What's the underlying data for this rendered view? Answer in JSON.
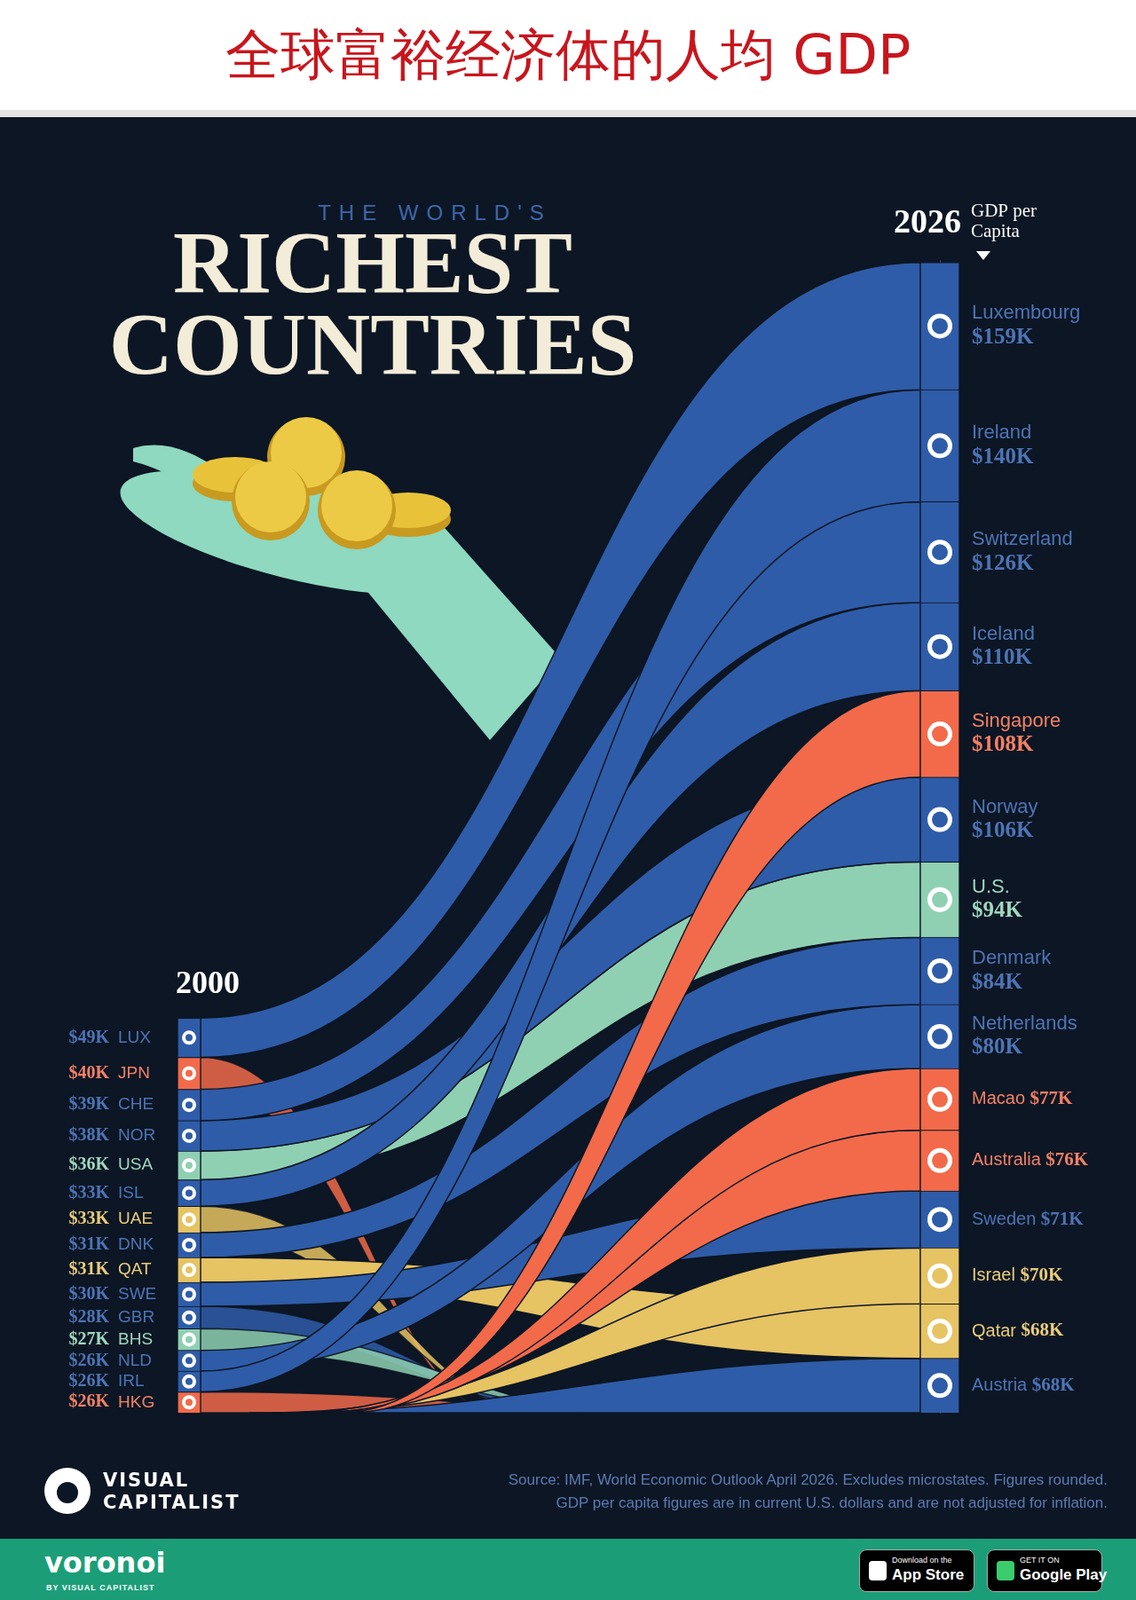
{
  "header": {
    "title": "全球富裕经济体的人均 GDP"
  },
  "chart_data": {
    "type": "bar",
    "stacked": true,
    "data_labels": true,
    "tick_labels": false,
    "grid": false,
    "supertitle": "THE WORLD'S",
    "title": "RICHEST COUNTRIES",
    "ylabel": "GDP per Capita",
    "categories": [
      "2000",
      "2026"
    ],
    "ylim": [
      0,
      1440
    ],
    "order_2000": [
      "LUX",
      "JPN",
      "CHE",
      "NOR",
      "USA",
      "ISL",
      "UAE",
      "DNK",
      "QAT",
      "SWE",
      "GBR",
      "BHS",
      "NLD",
      "IRL",
      "HKG"
    ],
    "order_2026": [
      "Luxembourg",
      "Ireland",
      "Switzerland",
      "Iceland",
      "Singapore",
      "Norway",
      "U.S.",
      "Denmark",
      "Netherlands",
      "Macao",
      "Australia",
      "Sweden",
      "Israel",
      "Qatar",
      "Austria"
    ],
    "series": [
      {
        "name": "Luxembourg",
        "code": "LUX",
        "color": "#2f5ca8",
        "values": [
          49,
          159
        ],
        "value_labels": [
          "$49K",
          "$159K"
        ]
      },
      {
        "name": "Ireland",
        "code": "IRL",
        "color": "#2f5ca8",
        "values": [
          26,
          140
        ],
        "value_labels": [
          "$26K",
          "$140K"
        ]
      },
      {
        "name": "Switzerland",
        "code": "CHE",
        "color": "#2f5ca8",
        "values": [
          39,
          126
        ],
        "value_labels": [
          "$39K",
          "$126K"
        ]
      },
      {
        "name": "Iceland",
        "code": "ISL",
        "color": "#2f5ca8",
        "values": [
          33,
          110
        ],
        "value_labels": [
          "$33K",
          "$110K"
        ]
      },
      {
        "name": "Singapore",
        "color": "#f26a4a",
        "values": [
          null,
          108
        ],
        "value_labels": [
          null,
          "$108K"
        ]
      },
      {
        "name": "Norway",
        "code": "NOR",
        "color": "#2f5ca8",
        "values": [
          38,
          106
        ],
        "value_labels": [
          "$38K",
          "$106K"
        ]
      },
      {
        "name": "U.S.",
        "code": "USA",
        "color": "#8fd0b2",
        "values": [
          36,
          94
        ],
        "value_labels": [
          "$36K",
          "$94K"
        ]
      },
      {
        "name": "Denmark",
        "code": "DNK",
        "color": "#2f5ca8",
        "values": [
          31,
          84
        ],
        "value_labels": [
          "$31K",
          "$84K"
        ]
      },
      {
        "name": "Netherlands",
        "code": "NLD",
        "color": "#2f5ca8",
        "values": [
          26,
          80
        ],
        "value_labels": [
          "$26K",
          "$80K"
        ]
      },
      {
        "name": "Macao",
        "color": "#f26a4a",
        "values": [
          null,
          77
        ],
        "value_labels": [
          null,
          "$77K"
        ]
      },
      {
        "name": "Australia",
        "color": "#f26a4a",
        "values": [
          null,
          76
        ],
        "value_labels": [
          null,
          "$76K"
        ]
      },
      {
        "name": "Sweden",
        "code": "SWE",
        "color": "#2f5ca8",
        "values": [
          30,
          71
        ],
        "value_labels": [
          "$30K",
          "$71K"
        ]
      },
      {
        "name": "Israel",
        "color": "#e6c363",
        "values": [
          null,
          70
        ],
        "value_labels": [
          null,
          "$70K"
        ]
      },
      {
        "name": "Qatar",
        "code": "QAT",
        "color": "#e6c363",
        "values": [
          31,
          68
        ],
        "value_labels": [
          "$31K",
          "$68K"
        ]
      },
      {
        "name": "Austria",
        "color": "#2f5ca8",
        "values": [
          null,
          68
        ],
        "value_labels": [
          null,
          "$68K"
        ]
      },
      {
        "code": "JPN",
        "color": "#f26a4a",
        "values": [
          40,
          null
        ],
        "value_labels": [
          "$40K",
          null
        ]
      },
      {
        "code": "UAE",
        "color": "#e6c363",
        "values": [
          33,
          null
        ],
        "value_labels": [
          "$33K",
          null
        ]
      },
      {
        "code": "GBR",
        "color": "#2f5ca8",
        "values": [
          28,
          null
        ],
        "value_labels": [
          "$28K",
          null
        ]
      },
      {
        "code": "BHS",
        "color": "#8fd0b2",
        "values": [
          27,
          null
        ],
        "value_labels": [
          "$27K",
          null
        ]
      },
      {
        "code": "HKG",
        "color": "#f26a4a",
        "values": [
          26,
          null
        ],
        "value_labels": [
          "$26K",
          null
        ]
      }
    ]
  },
  "source": [
    "Source: IMF, World Economic Outlook April 2026. Excludes microstates. Figures rounded.",
    "GDP per capita figures are in current U.S. dollars and are not adjusted for inflation."
  ],
  "logo": [
    "VISUAL",
    "CAPITALIST"
  ],
  "footer": {
    "brand": "voronoi",
    "brand_by": "BY VISUAL CAPITALIST",
    "app_store": [
      "Download on the",
      "App Store"
    ],
    "google_play": [
      "GET IT ON",
      "Google Play"
    ]
  }
}
